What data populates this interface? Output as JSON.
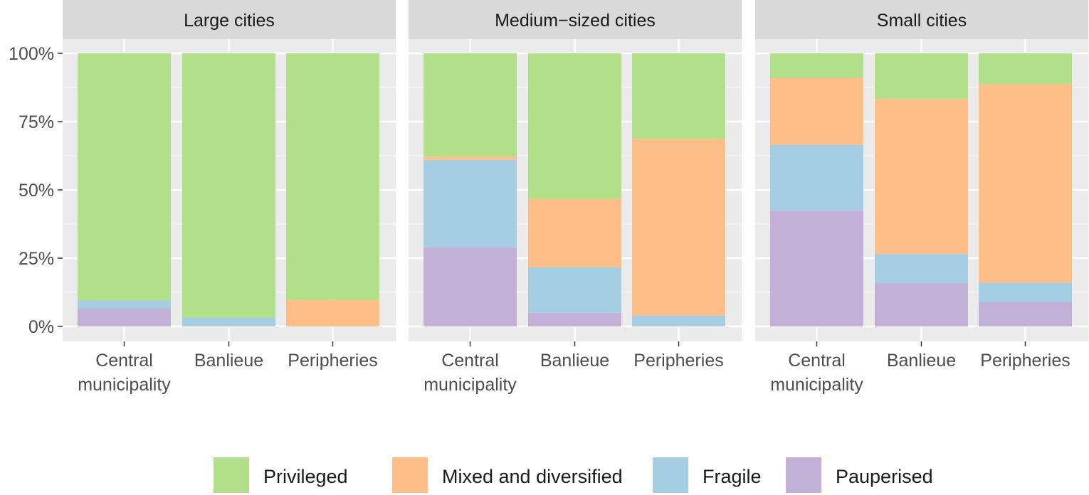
{
  "chart_data": {
    "type": "bar",
    "stacked": true,
    "y_axis": {
      "ylim": [
        0,
        1
      ],
      "ticks": [
        0,
        0.25,
        0.5,
        0.75,
        1
      ],
      "tick_labels": [
        "0%",
        "25%",
        "50%",
        "75%",
        "100%"
      ]
    },
    "categories": [
      [
        "Central",
        "municipality"
      ],
      [
        "Banlieue"
      ],
      [
        "Peripheries"
      ]
    ],
    "series_order": [
      "Pauperised",
      "Fragile",
      "Mixed and diversified",
      "Privileged"
    ],
    "colors": {
      "Privileged": "#b2df8a",
      "Mixed and diversified": "#fdbf87",
      "Fragile": "#a6cee3",
      "Pauperised": "#c2b0d6"
    },
    "legend": {
      "position": "bottom",
      "entries": [
        "Privileged",
        "Mixed and diversified",
        "Fragile",
        "Pauperised"
      ]
    },
    "panels": [
      {
        "title": "Large cities",
        "bars": [
          {
            "Pauperised": 0.065,
            "Fragile": 0.03,
            "Mixed and diversified": 0.0,
            "Privileged": 0.905
          },
          {
            "Pauperised": 0.0,
            "Fragile": 0.033,
            "Mixed and diversified": 0.0,
            "Privileged": 0.967
          },
          {
            "Pauperised": 0.0,
            "Fragile": 0.0,
            "Mixed and diversified": 0.097,
            "Privileged": 0.903
          }
        ]
      },
      {
        "title": "Medium−sized cities",
        "bars": [
          {
            "Pauperised": 0.29,
            "Fragile": 0.32,
            "Mixed and diversified": 0.012,
            "Privileged": 0.378
          },
          {
            "Pauperised": 0.05,
            "Fragile": 0.167,
            "Mixed and diversified": 0.25,
            "Privileged": 0.533
          },
          {
            "Pauperised": 0.0,
            "Fragile": 0.04,
            "Mixed and diversified": 0.647,
            "Privileged": 0.313
          }
        ]
      },
      {
        "title": "Small cities",
        "bars": [
          {
            "Pauperised": 0.425,
            "Fragile": 0.24,
            "Mixed and diversified": 0.245,
            "Privileged": 0.09
          },
          {
            "Pauperised": 0.16,
            "Fragile": 0.105,
            "Mixed and diversified": 0.568,
            "Privileged": 0.167
          },
          {
            "Pauperised": 0.09,
            "Fragile": 0.07,
            "Mixed and diversified": 0.727,
            "Privileged": 0.113
          }
        ]
      }
    ]
  }
}
